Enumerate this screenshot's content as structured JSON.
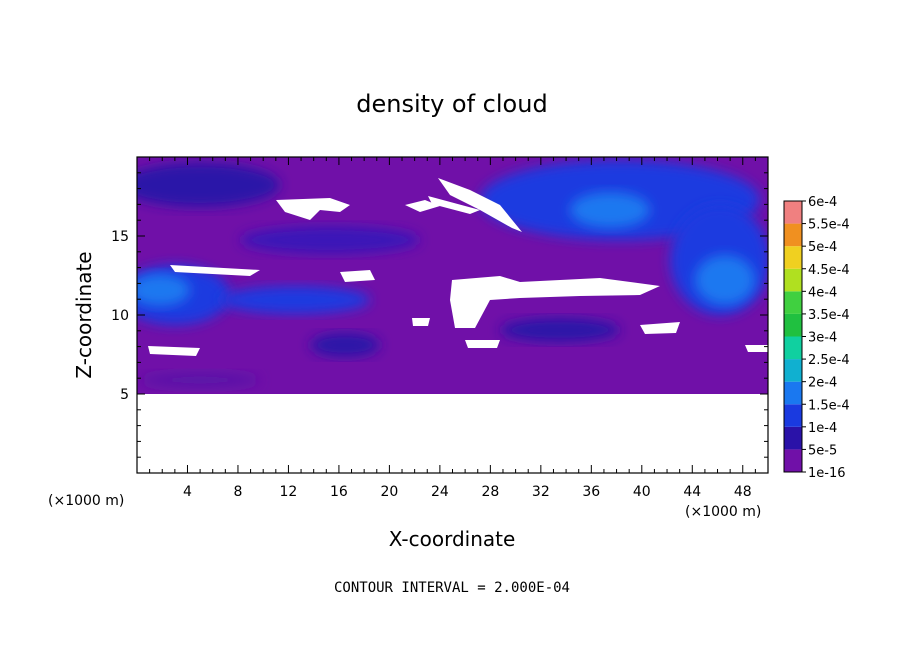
{
  "chart_data": {
    "type": "heatmap",
    "title": "density of cloud",
    "xlabel": "X-coordinate",
    "ylabel": "Z-coordinate",
    "x_unit": "(×1000 m)",
    "x_unit_right": "(×1000 m)",
    "xlim": [
      0,
      50
    ],
    "ylim": [
      0,
      20
    ],
    "x_ticks": [
      4,
      8,
      12,
      16,
      20,
      24,
      28,
      32,
      36,
      40,
      44,
      48
    ],
    "y_ticks": [
      5,
      10,
      15
    ],
    "colorbar": {
      "labels": [
        "1e-16",
        "5e-5",
        "1e-4",
        "1.5e-4",
        "2e-4",
        "2.5e-4",
        "3e-4",
        "3.5e-4",
        "4e-4",
        "4.5e-4",
        "5e-4",
        "5.5e-4",
        "6e-4"
      ],
      "colors": [
        "#7010a8",
        "#2a12a8",
        "#1a3ae0",
        "#1a78f0",
        "#10b0d0",
        "#10d0a0",
        "#20c040",
        "#40d040",
        "#b0e020",
        "#f0d020",
        "#f09020",
        "#f04020",
        "#f08080"
      ]
    },
    "blank_below_z": 5,
    "note": "CONTOUR INTERVAL = 2.000E-04"
  }
}
